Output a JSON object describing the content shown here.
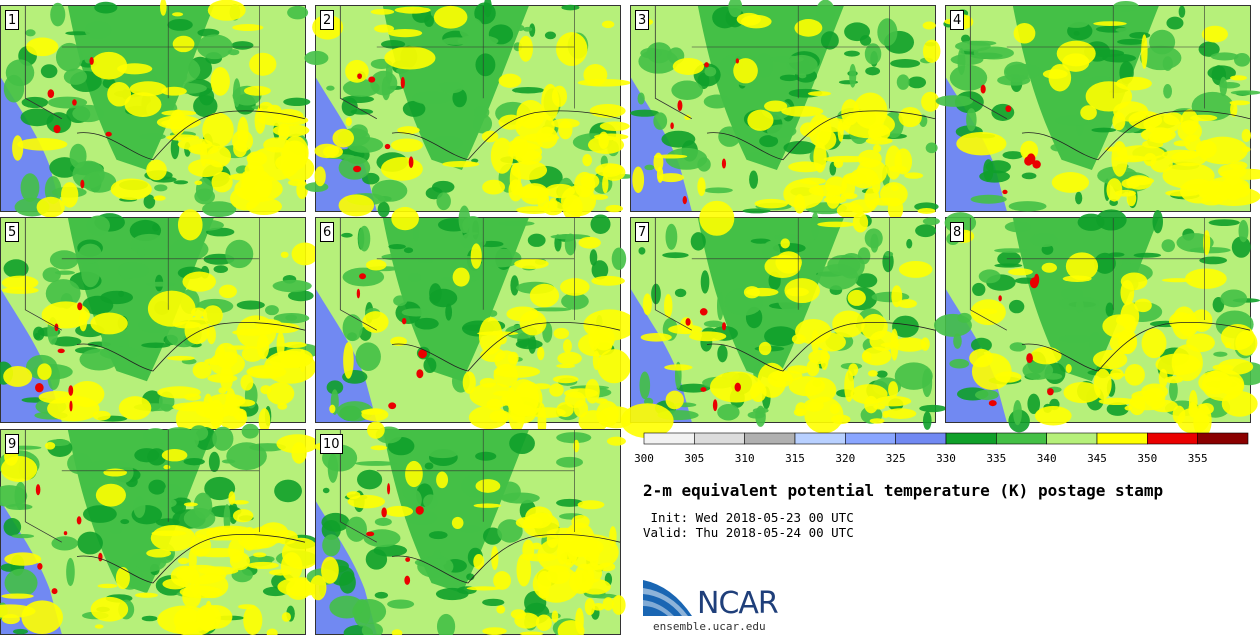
{
  "panels": [
    {
      "label": "1"
    },
    {
      "label": "2"
    },
    {
      "label": "3"
    },
    {
      "label": "4"
    },
    {
      "label": "5"
    },
    {
      "label": "6"
    },
    {
      "label": "7"
    },
    {
      "label": "8"
    },
    {
      "label": "9"
    },
    {
      "label": "10"
    }
  ],
  "colorbar": {
    "ticks": [
      "300",
      "305",
      "310",
      "315",
      "320",
      "325",
      "330",
      "335",
      "340",
      "345",
      "350",
      "355"
    ],
    "colors": [
      "#f2f2f2",
      "#dcdcdc",
      "#b0b0b0",
      "#b8d0ff",
      "#8aa6ff",
      "#7189f2",
      "#10a02a",
      "#44c046",
      "#b6f07a",
      "#ffff00",
      "#ea0000",
      "#8a0000"
    ]
  },
  "title": "2-m equivalent potential temperature (K) postage stamp",
  "init_line": " Init: Wed 2018-05-23 00 UTC",
  "valid_line": "Valid: Thu 2018-05-24 00 UTC",
  "logo": {
    "text": "NCAR",
    "site": "ensemble.ucar.edu"
  }
}
